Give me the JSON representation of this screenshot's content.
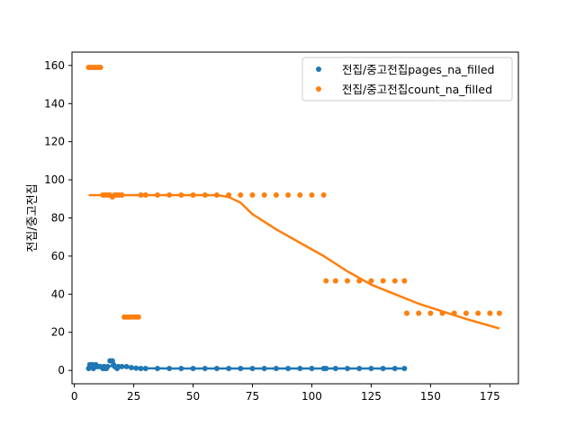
{
  "chart_data": {
    "type": "scatter",
    "xlabel": "",
    "ylabel": "전집/중고전집",
    "xlim": [
      -1,
      187
    ],
    "ylim": [
      -7,
      167
    ],
    "xticks": [
      0,
      25,
      50,
      75,
      100,
      125,
      150,
      175
    ],
    "yticks": [
      0,
      20,
      40,
      60,
      80,
      100,
      120,
      140,
      160
    ],
    "grid": false,
    "legend_position": "top-right",
    "series": [
      {
        "name": "전집/중고전집pages_na_filled",
        "color": "#1f77b4",
        "points": [
          [
            6,
            1
          ],
          [
            6.5,
            3
          ],
          [
            7,
            2
          ],
          [
            7.5,
            3
          ],
          [
            8,
            1
          ],
          [
            8.5,
            2
          ],
          [
            9,
            3
          ],
          [
            9.5,
            2
          ],
          [
            10,
            2
          ],
          [
            11,
            2
          ],
          [
            12,
            1
          ],
          [
            12.5,
            2
          ],
          [
            13,
            1
          ],
          [
            13.5,
            1
          ],
          [
            14,
            2
          ],
          [
            15,
            5
          ],
          [
            16,
            5
          ],
          [
            16.5,
            3
          ],
          [
            17,
            2
          ],
          [
            18,
            1
          ],
          [
            18.5,
            2
          ],
          [
            20,
            2
          ],
          [
            22,
            2
          ],
          [
            24,
            1.5
          ],
          [
            26,
            1.2
          ],
          [
            28,
            1
          ],
          [
            30,
            1
          ],
          [
            35,
            1
          ],
          [
            40,
            1
          ],
          [
            45,
            1
          ],
          [
            50,
            1
          ],
          [
            55,
            1
          ],
          [
            60,
            1
          ],
          [
            65,
            1
          ],
          [
            70,
            1
          ],
          [
            75,
            1
          ],
          [
            80,
            1
          ],
          [
            85,
            1
          ],
          [
            90,
            1
          ],
          [
            95,
            1
          ],
          [
            100,
            1
          ],
          [
            105,
            1
          ],
          [
            106,
            1
          ],
          [
            110,
            1
          ],
          [
            115,
            1
          ],
          [
            120,
            1
          ],
          [
            125,
            1
          ],
          [
            130,
            1
          ],
          [
            135,
            1
          ],
          [
            139,
            1
          ]
        ],
        "trend": [
          [
            6,
            3
          ],
          [
            10,
            2.5
          ],
          [
            15,
            2.3
          ],
          [
            20,
            1.9
          ],
          [
            25,
            1.4
          ],
          [
            30,
            1.1
          ],
          [
            40,
            1.0
          ],
          [
            60,
            1.0
          ],
          [
            80,
            1.0
          ],
          [
            100,
            1.0
          ],
          [
            120,
            1.0
          ],
          [
            139,
            1.0
          ]
        ]
      },
      {
        "name": "전집/중고전집count_na_filled",
        "color": "#ff7f0e",
        "points": [
          [
            6,
            159
          ],
          [
            7,
            159
          ],
          [
            8,
            159
          ],
          [
            9,
            159
          ],
          [
            10,
            159
          ],
          [
            11,
            159
          ],
          [
            12,
            92
          ],
          [
            13,
            92
          ],
          [
            14,
            92
          ],
          [
            15,
            92
          ],
          [
            16,
            91
          ],
          [
            17,
            92
          ],
          [
            18,
            92
          ],
          [
            19,
            92
          ],
          [
            20,
            92
          ],
          [
            21,
            28
          ],
          [
            22,
            28
          ],
          [
            23,
            28
          ],
          [
            24,
            28
          ],
          [
            25,
            28
          ],
          [
            26,
            28
          ],
          [
            27,
            28
          ],
          [
            28,
            92
          ],
          [
            30,
            92
          ],
          [
            35,
            92
          ],
          [
            40,
            92
          ],
          [
            45,
            92
          ],
          [
            50,
            92
          ],
          [
            55,
            92
          ],
          [
            60,
            92
          ],
          [
            65,
            92
          ],
          [
            70,
            92
          ],
          [
            75,
            92
          ],
          [
            80,
            92
          ],
          [
            85,
            92
          ],
          [
            90,
            92
          ],
          [
            95,
            92
          ],
          [
            100,
            92
          ],
          [
            105,
            92
          ],
          [
            106,
            47
          ],
          [
            110,
            47
          ],
          [
            115,
            47
          ],
          [
            120,
            47
          ],
          [
            125,
            47
          ],
          [
            130,
            47
          ],
          [
            135,
            47
          ],
          [
            139,
            47
          ],
          [
            140,
            30
          ],
          [
            145,
            30
          ],
          [
            150,
            30
          ],
          [
            155,
            30
          ],
          [
            160,
            30
          ],
          [
            165,
            30
          ],
          [
            170,
            30
          ],
          [
            175,
            30
          ],
          [
            179,
            30
          ]
        ],
        "trend": [
          [
            6,
            92
          ],
          [
            20,
            92
          ],
          [
            40,
            92
          ],
          [
            60,
            92
          ],
          [
            65,
            91
          ],
          [
            70,
            88
          ],
          [
            75,
            82
          ],
          [
            85,
            74
          ],
          [
            95,
            67
          ],
          [
            105,
            60
          ],
          [
            115,
            52
          ],
          [
            125,
            45
          ],
          [
            135,
            40
          ],
          [
            145,
            35
          ],
          [
            155,
            31
          ],
          [
            165,
            27
          ],
          [
            179,
            22
          ]
        ]
      }
    ]
  }
}
